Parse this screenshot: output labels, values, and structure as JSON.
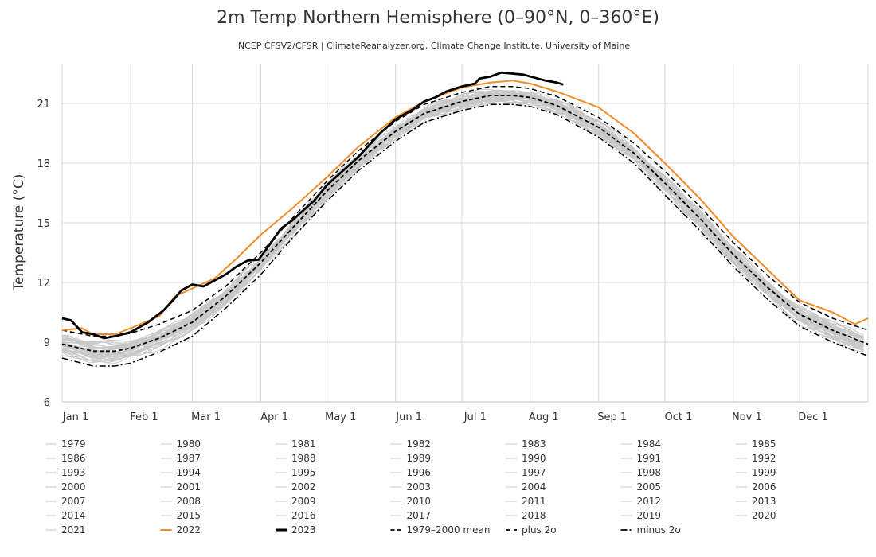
{
  "chart_data": {
    "type": "line",
    "title": "2m Temp Northern Hemisphere (0–90°N, 0–360°E)",
    "subtitle": "NCEP CFSV2/CFSR | ClimateReanalyzer.org, Climate Change Institute, University of Maine",
    "ylabel": "Temperature (°C)",
    "xlabel": "",
    "x_domain": [
      1,
      366
    ],
    "ylim": [
      6,
      23
    ],
    "y_ticks": [
      6,
      9,
      12,
      15,
      18,
      21
    ],
    "x_ticks": [
      {
        "label": "Jan 1",
        "day": 1
      },
      {
        "label": "Feb 1",
        "day": 32
      },
      {
        "label": "Mar 1",
        "day": 60
      },
      {
        "label": "Apr 1",
        "day": 91
      },
      {
        "label": "May 1",
        "day": 121
      },
      {
        "label": "Jun 1",
        "day": 152
      },
      {
        "label": "Jul 1",
        "day": 182
      },
      {
        "label": "Aug 1",
        "day": 213
      },
      {
        "label": "Sep 1",
        "day": 244
      },
      {
        "label": "Oct 1",
        "day": 274
      },
      {
        "label": "Nov 1",
        "day": 305
      },
      {
        "label": "Dec 1",
        "day": 335
      }
    ],
    "grid": true,
    "legend_position": "bottom",
    "colors": {
      "historical": "#c8c8c8",
      "year_2022": "#f28c28",
      "year_2023": "#000000",
      "reference": "#000000",
      "grid": "#d8d8d8"
    },
    "historical_years": [
      "1979",
      "1980",
      "1981",
      "1982",
      "1983",
      "1984",
      "1985",
      "1986",
      "1987",
      "1988",
      "1989",
      "1990",
      "1991",
      "1992",
      "1993",
      "1994",
      "1995",
      "1996",
      "1997",
      "1998",
      "1999",
      "2000",
      "2001",
      "2002",
      "2003",
      "2004",
      "2005",
      "2006",
      "2007",
      "2008",
      "2009",
      "2010",
      "2011",
      "2012",
      "2013",
      "2014",
      "2015",
      "2016",
      "2017",
      "2018",
      "2019",
      "2020",
      "2021"
    ],
    "mean_1979_2000": {
      "x": [
        1,
        15,
        25,
        32,
        45,
        60,
        75,
        91,
        105,
        121,
        135,
        152,
        165,
        182,
        195,
        205,
        213,
        225,
        244,
        260,
        274,
        290,
        305,
        320,
        335,
        350,
        366
      ],
      "y": [
        8.9,
        8.55,
        8.55,
        8.7,
        9.2,
        10.0,
        11.3,
        13.0,
        14.7,
        16.6,
        18.1,
        19.6,
        20.5,
        21.1,
        21.4,
        21.4,
        21.3,
        20.9,
        19.8,
        18.5,
        17.0,
        15.2,
        13.4,
        11.8,
        10.4,
        9.6,
        8.9
      ]
    },
    "plus_2sigma": {
      "x": [
        1,
        15,
        25,
        32,
        45,
        60,
        75,
        91,
        105,
        121,
        135,
        152,
        165,
        182,
        195,
        205,
        213,
        225,
        244,
        260,
        274,
        290,
        305,
        320,
        335,
        350,
        366
      ],
      "y": [
        9.6,
        9.3,
        9.3,
        9.45,
        9.9,
        10.6,
        11.8,
        13.5,
        15.2,
        17.1,
        18.6,
        20.1,
        20.95,
        21.55,
        21.85,
        21.85,
        21.75,
        21.35,
        20.3,
        19.0,
        17.6,
        15.8,
        14.0,
        12.4,
        11.0,
        10.2,
        9.6
      ]
    },
    "minus_2sigma": {
      "x": [
        1,
        15,
        25,
        32,
        45,
        60,
        75,
        91,
        105,
        121,
        135,
        152,
        165,
        182,
        195,
        205,
        213,
        225,
        244,
        260,
        274,
        290,
        305,
        320,
        335,
        350,
        366
      ],
      "y": [
        8.2,
        7.8,
        7.8,
        7.95,
        8.5,
        9.3,
        10.7,
        12.4,
        14.2,
        16.1,
        17.6,
        19.1,
        20.05,
        20.65,
        20.95,
        20.95,
        20.85,
        20.45,
        19.3,
        18.0,
        16.4,
        14.6,
        12.8,
        11.2,
        9.8,
        9.0,
        8.3
      ]
    },
    "series_2022": {
      "name": "2022",
      "x": [
        1,
        10,
        15,
        25,
        32,
        45,
        52,
        60,
        70,
        80,
        91,
        105,
        121,
        135,
        152,
        165,
        182,
        195,
        205,
        213,
        225,
        244,
        260,
        274,
        290,
        305,
        320,
        335,
        350,
        360,
        366
      ],
      "y": [
        9.6,
        9.7,
        9.4,
        9.4,
        9.7,
        10.3,
        11.3,
        11.7,
        12.2,
        13.2,
        14.4,
        15.7,
        17.3,
        18.8,
        20.3,
        21.1,
        21.8,
        22.05,
        22.15,
        22.0,
        21.6,
        20.8,
        19.5,
        18.0,
        16.2,
        14.3,
        12.7,
        11.1,
        10.5,
        9.9,
        10.2
      ]
    },
    "series_2023": {
      "name": "2023",
      "x": [
        1,
        5,
        10,
        15,
        20,
        25,
        32,
        40,
        47,
        52,
        55,
        60,
        65,
        70,
        75,
        80,
        85,
        90,
        95,
        100,
        105,
        110,
        115,
        121,
        130,
        135,
        140,
        145,
        152,
        160,
        165,
        170,
        175,
        182,
        188,
        190,
        195,
        200,
        205,
        210,
        213,
        220,
        225,
        228
      ],
      "y": [
        10.2,
        10.1,
        9.5,
        9.4,
        9.2,
        9.3,
        9.5,
        10.0,
        10.6,
        11.2,
        11.6,
        11.9,
        11.8,
        12.1,
        12.4,
        12.8,
        13.1,
        13.15,
        13.9,
        14.7,
        15.1,
        15.6,
        16.1,
        16.9,
        17.8,
        18.3,
        18.9,
        19.5,
        20.2,
        20.7,
        21.1,
        21.3,
        21.6,
        21.85,
        22.0,
        22.25,
        22.35,
        22.55,
        22.5,
        22.45,
        22.35,
        22.15,
        22.05,
        21.95
      ]
    },
    "legend": {
      "years": [
        "1979",
        "1980",
        "1981",
        "1982",
        "1983",
        "1984",
        "1985",
        "1986",
        "1987",
        "1988",
        "1989",
        "1990",
        "1991",
        "1992",
        "1993",
        "1994",
        "1995",
        "1996",
        "1997",
        "1998",
        "1999",
        "2000",
        "2001",
        "2002",
        "2003",
        "2004",
        "2005",
        "2006",
        "2007",
        "2008",
        "2009",
        "2010",
        "2011",
        "2012",
        "2013",
        "2014",
        "2015",
        "2016",
        "2017",
        "2018",
        "2019",
        "2020",
        "2021",
        "2022",
        "2023"
      ],
      "mean_label": "1979–2000 mean",
      "plus_label": "plus 2σ",
      "minus_label": "minus 2σ"
    }
  }
}
